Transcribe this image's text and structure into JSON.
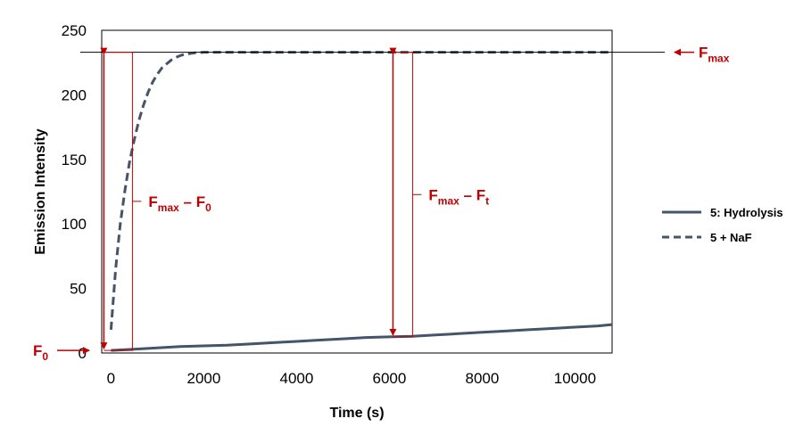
{
  "chart_data": {
    "type": "line",
    "xlabel": "Time (s)",
    "ylabel": "Emission Intensity",
    "xlim": [
      -200,
      10800
    ],
    "ylim": [
      0,
      250
    ],
    "x_ticks": [
      0,
      2000,
      4000,
      6000,
      8000,
      10000
    ],
    "y_ticks": [
      0,
      50,
      100,
      150,
      200,
      250
    ],
    "grid": false,
    "legend_position": "right",
    "series": [
      {
        "name": "5: Hydrolysis",
        "style": "solid",
        "color": "#44546a",
        "x": [
          0,
          500,
          1000,
          1500,
          2000,
          2500,
          3000,
          3500,
          4000,
          4500,
          5000,
          5500,
          6000,
          6500,
          7000,
          7500,
          8000,
          8500,
          9000,
          9500,
          10000,
          10500,
          10800
        ],
        "y": [
          2,
          3,
          4,
          5,
          5.5,
          6,
          7,
          8,
          9,
          10,
          11,
          12,
          12.5,
          13,
          14,
          15,
          16,
          17,
          18,
          19,
          20,
          21,
          22
        ]
      },
      {
        "name": "5 + NaF",
        "style": "dashed",
        "color": "#44546a",
        "x": [
          0,
          100,
          200,
          300,
          400,
          500,
          600,
          700,
          800,
          900,
          1000,
          1100,
          1200,
          1300,
          1400,
          1500,
          1600,
          1800,
          2000,
          2500,
          3000,
          4000,
          5000,
          6000,
          7000,
          8000,
          9000,
          10000,
          10800
        ],
        "y": [
          18,
          65,
          100,
          126,
          148,
          165,
          180,
          192,
          202,
          210,
          216,
          221,
          224,
          227,
          229,
          230.5,
          231.5,
          232.5,
          233,
          233,
          233,
          233,
          233,
          233,
          233,
          233,
          233,
          233,
          233
        ]
      }
    ],
    "annotations": {
      "fmax_main": "F",
      "fmax_sub": "max",
      "f0_main": "F",
      "f0_sub": "0",
      "diff1_a": "F",
      "diff1_a_sub": "max",
      "diff1_dash": " – ",
      "diff1_b": "F",
      "diff1_b_sub": "0",
      "diff2_a": "F",
      "diff2_a_sub": "max",
      "diff2_dash": " – ",
      "diff2_b": "F",
      "diff2_b_sub": "t",
      "fmax_value": 233,
      "f0_value": 2,
      "diff1_x": 0,
      "diff2_x": 6000
    },
    "colors": {
      "annotation": "#c00000",
      "series": "#44546a",
      "axes": "#000000"
    }
  }
}
